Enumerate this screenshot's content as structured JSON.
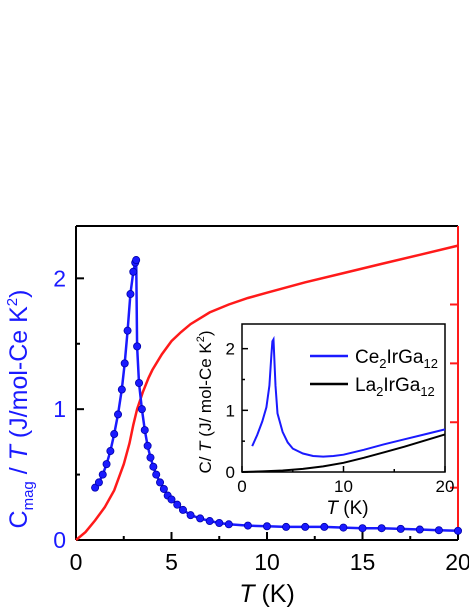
{
  "chart_data": {
    "main": {
      "type": "line",
      "xlim": [
        0,
        20
      ],
      "ylim": [
        0,
        2.4
      ],
      "x_ticks": [
        0,
        5,
        10,
        15,
        20
      ],
      "x_tick_labels": [
        "0",
        "5",
        "10",
        "15",
        "20"
      ],
      "y_ticks": [
        0,
        1,
        2
      ],
      "y_tick_labels": [
        "0",
        "1",
        "2"
      ],
      "xlabel": {
        "italic": "T",
        "rest": " (K)"
      },
      "ylabel": {
        "main": "C",
        "sub": "mag",
        "rest1": " / ",
        "italic": "T",
        "rest2": " (J/mol-Ce K",
        "sup": "2",
        "rest3": ")"
      },
      "colors": {
        "left_axis": "#1a1aff",
        "right_axis": "#ff1a1a",
        "series_blue": "#1a1aff",
        "series_red": "#ff1a1a",
        "axes": "#000000"
      },
      "series": [
        {
          "color": "blue",
          "markers": "circle",
          "x": [
            1.0,
            1.2,
            1.4,
            1.6,
            1.8,
            2.0,
            2.2,
            2.4,
            2.55,
            2.7,
            2.85,
            3.0,
            3.1,
            3.15,
            3.2,
            3.3,
            3.45,
            3.6,
            3.75,
            3.9,
            4.05,
            4.2,
            4.4,
            4.6,
            4.8,
            5.0,
            5.3,
            5.6,
            6.0,
            6.5,
            7.0,
            7.5,
            8.0,
            9.0,
            10.0,
            11.0,
            12.0,
            13.0,
            14.0,
            15.0,
            16.0,
            17.0,
            18.0,
            19.0,
            20.0
          ],
          "y": [
            0.4,
            0.44,
            0.5,
            0.58,
            0.68,
            0.81,
            0.96,
            1.15,
            1.35,
            1.6,
            1.88,
            2.05,
            2.12,
            2.14,
            1.48,
            1.2,
            1.0,
            0.84,
            0.72,
            0.63,
            0.56,
            0.5,
            0.44,
            0.39,
            0.34,
            0.31,
            0.27,
            0.23,
            0.19,
            0.165,
            0.145,
            0.13,
            0.12,
            0.11,
            0.105,
            0.1,
            0.1,
            0.1,
            0.095,
            0.09,
            0.09,
            0.085,
            0.08,
            0.075,
            0.07
          ]
        },
        {
          "color": "red",
          "markers": "none",
          "x": [
            0.0,
            0.5,
            1.0,
            1.5,
            2.0,
            2.5,
            2.8,
            3.0,
            3.2,
            3.5,
            3.8,
            4.0,
            4.5,
            5.0,
            5.5,
            6.0,
            7.0,
            8.0,
            9.0,
            10.0,
            12.0,
            14.0,
            16.0,
            18.0,
            20.0
          ],
          "y": [
            0.0,
            0.06,
            0.15,
            0.25,
            0.38,
            0.58,
            0.74,
            0.88,
            1.0,
            1.13,
            1.24,
            1.3,
            1.42,
            1.52,
            1.59,
            1.65,
            1.74,
            1.8,
            1.85,
            1.89,
            1.97,
            2.04,
            2.11,
            2.18,
            2.25
          ]
        }
      ]
    },
    "inset": {
      "type": "line",
      "xlim": [
        0,
        20
      ],
      "ylim": [
        0,
        2.4
      ],
      "x_ticks": [
        0,
        10,
        20
      ],
      "x_tick_labels": [
        "0",
        "10",
        "20"
      ],
      "y_ticks": [
        0,
        1,
        2
      ],
      "y_tick_labels": [
        "0",
        "1",
        "2"
      ],
      "xlabel": {
        "italic": "T",
        "rest": " (K)"
      },
      "ylabel": {
        "main": "C",
        "rest1": "/ ",
        "italic": "T",
        "rest2": " (J/ mol-Ce K",
        "sup": "2",
        "rest3": ")"
      },
      "legend_position": "top-right",
      "series": [
        {
          "name": {
            "a": "Ce",
            "s1": "2",
            "b": "IrGa",
            "s2": "12"
          },
          "color": "#1a1aff",
          "x": [
            1.0,
            1.5,
            2.0,
            2.4,
            2.7,
            2.9,
            3.0,
            3.1,
            3.3,
            3.5,
            4.0,
            4.5,
            5.0,
            6.0,
            7.0,
            8.0,
            9.0,
            10.0,
            12.0,
            14.0,
            16.0,
            18.0,
            20.0
          ],
          "y": [
            0.42,
            0.6,
            0.82,
            1.05,
            1.4,
            1.9,
            2.12,
            2.15,
            1.4,
            0.95,
            0.65,
            0.48,
            0.38,
            0.3,
            0.26,
            0.25,
            0.26,
            0.28,
            0.36,
            0.45,
            0.53,
            0.61,
            0.69
          ]
        },
        {
          "name": {
            "a": "La",
            "s1": "2",
            "b": "IrGa",
            "s2": "12"
          },
          "color": "#000000",
          "x": [
            0.0,
            2.0,
            4.0,
            6.0,
            8.0,
            10.0,
            12.0,
            14.0,
            16.0,
            18.0,
            20.0
          ],
          "y": [
            0.0,
            0.01,
            0.025,
            0.05,
            0.09,
            0.15,
            0.23,
            0.32,
            0.41,
            0.51,
            0.61
          ]
        }
      ]
    }
  }
}
